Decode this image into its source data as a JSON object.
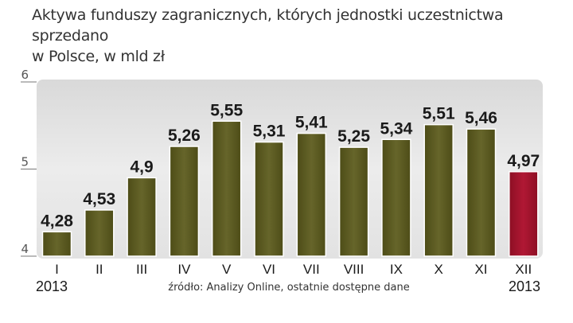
{
  "title_lines": [
    "Aktywa funduszy zagranicznych, których jednostki uczestnictwa sprzedano",
    "w Polsce, w mld zł"
  ],
  "source": "źródło: Analizy Online, ostatnie dostępne dane",
  "year_left": "2013",
  "year_right": "2013",
  "colors": {
    "bar": "#5b5a1e",
    "highlight": "#a0142d",
    "panel": "#e5e5e5"
  },
  "chart_data": {
    "type": "bar",
    "categories": [
      "I",
      "II",
      "III",
      "IV",
      "V",
      "VI",
      "VII",
      "VIII",
      "IX",
      "X",
      "XI",
      "XII"
    ],
    "values": [
      4.28,
      4.53,
      4.9,
      5.26,
      5.55,
      5.31,
      5.41,
      5.25,
      5.34,
      5.51,
      5.46,
      4.97
    ],
    "data_labels": [
      "4,28",
      "4,53",
      "4,9",
      "5,26",
      "5,55",
      "5,31",
      "5,41",
      "5,25",
      "5,34",
      "5,51",
      "5,46",
      "4,97"
    ],
    "highlight_index": 11,
    "yticks": [
      4,
      5,
      6
    ],
    "ylim": [
      4,
      6
    ],
    "grid": false,
    "xlabel": "",
    "ylabel": ""
  }
}
